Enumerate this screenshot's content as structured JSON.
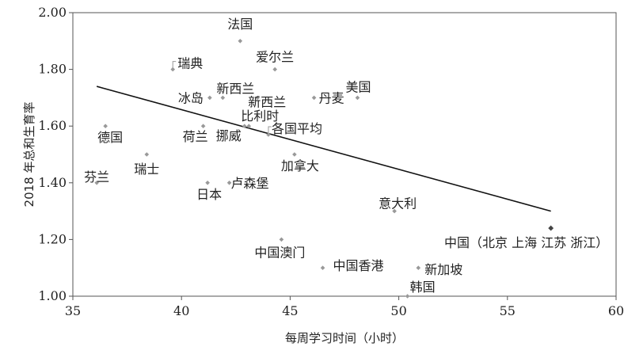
{
  "chart_data": {
    "type": "scatter",
    "xlabel": "每周学习时间（小时）",
    "ylabel": "2018 年总和生育率",
    "xlim": [
      35,
      60
    ],
    "ylim": [
      1.0,
      2.0
    ],
    "x_ticks": [
      "35",
      "40",
      "45",
      "50",
      "55",
      "60"
    ],
    "y_ticks": [
      "1.00",
      "1.20",
      "1.40",
      "1.60",
      "1.80",
      "2.00"
    ],
    "grid": false,
    "points": [
      {
        "label": "法国",
        "x": 42.7,
        "y": 1.9
      },
      {
        "label": "瑞典",
        "x": 39.6,
        "y": 1.8
      },
      {
        "label": "爱尔兰",
        "x": 44.3,
        "y": 1.8
      },
      {
        "label": "冰岛",
        "x": 41.3,
        "y": 1.7
      },
      {
        "label": "新西兰",
        "x": 41.9,
        "y": 1.7
      },
      {
        "label": "新西兰",
        "x": 43.5,
        "y": 1.7
      },
      {
        "label": "丹麦",
        "x": 46.1,
        "y": 1.7
      },
      {
        "label": "美国",
        "x": 48.1,
        "y": 1.7
      },
      {
        "label": "德国",
        "x": 36.5,
        "y": 1.6
      },
      {
        "label": "荷兰",
        "x": 41.0,
        "y": 1.6
      },
      {
        "label": "挪威",
        "x": 42.9,
        "y": 1.6
      },
      {
        "label": "比利时",
        "x": 43.1,
        "y": 1.6
      },
      {
        "label": "各国平均",
        "x": 44.0,
        "y": 1.57
      },
      {
        "label": "瑞士",
        "x": 38.4,
        "y": 1.5
      },
      {
        "label": "加拿大",
        "x": 45.2,
        "y": 1.5
      },
      {
        "label": "芬兰",
        "x": 36.1,
        "y": 1.4
      },
      {
        "label": "日本",
        "x": 41.2,
        "y": 1.4
      },
      {
        "label": "卢森堡",
        "x": 42.2,
        "y": 1.4
      },
      {
        "label": "意大利",
        "x": 49.8,
        "y": 1.3
      },
      {
        "label": "中国（北京 上海 江苏 浙江）",
        "x": 57.0,
        "y": 1.24
      },
      {
        "label": "中国澳门",
        "x": 44.6,
        "y": 1.2
      },
      {
        "label": "中国香港",
        "x": 46.5,
        "y": 1.1
      },
      {
        "label": "新加坡",
        "x": 50.9,
        "y": 1.1
      },
      {
        "label": "韩国",
        "x": 50.4,
        "y": 1.0
      }
    ],
    "trendline": {
      "x": [
        36.1,
        57.0
      ],
      "y": [
        1.74,
        1.3
      ]
    }
  }
}
